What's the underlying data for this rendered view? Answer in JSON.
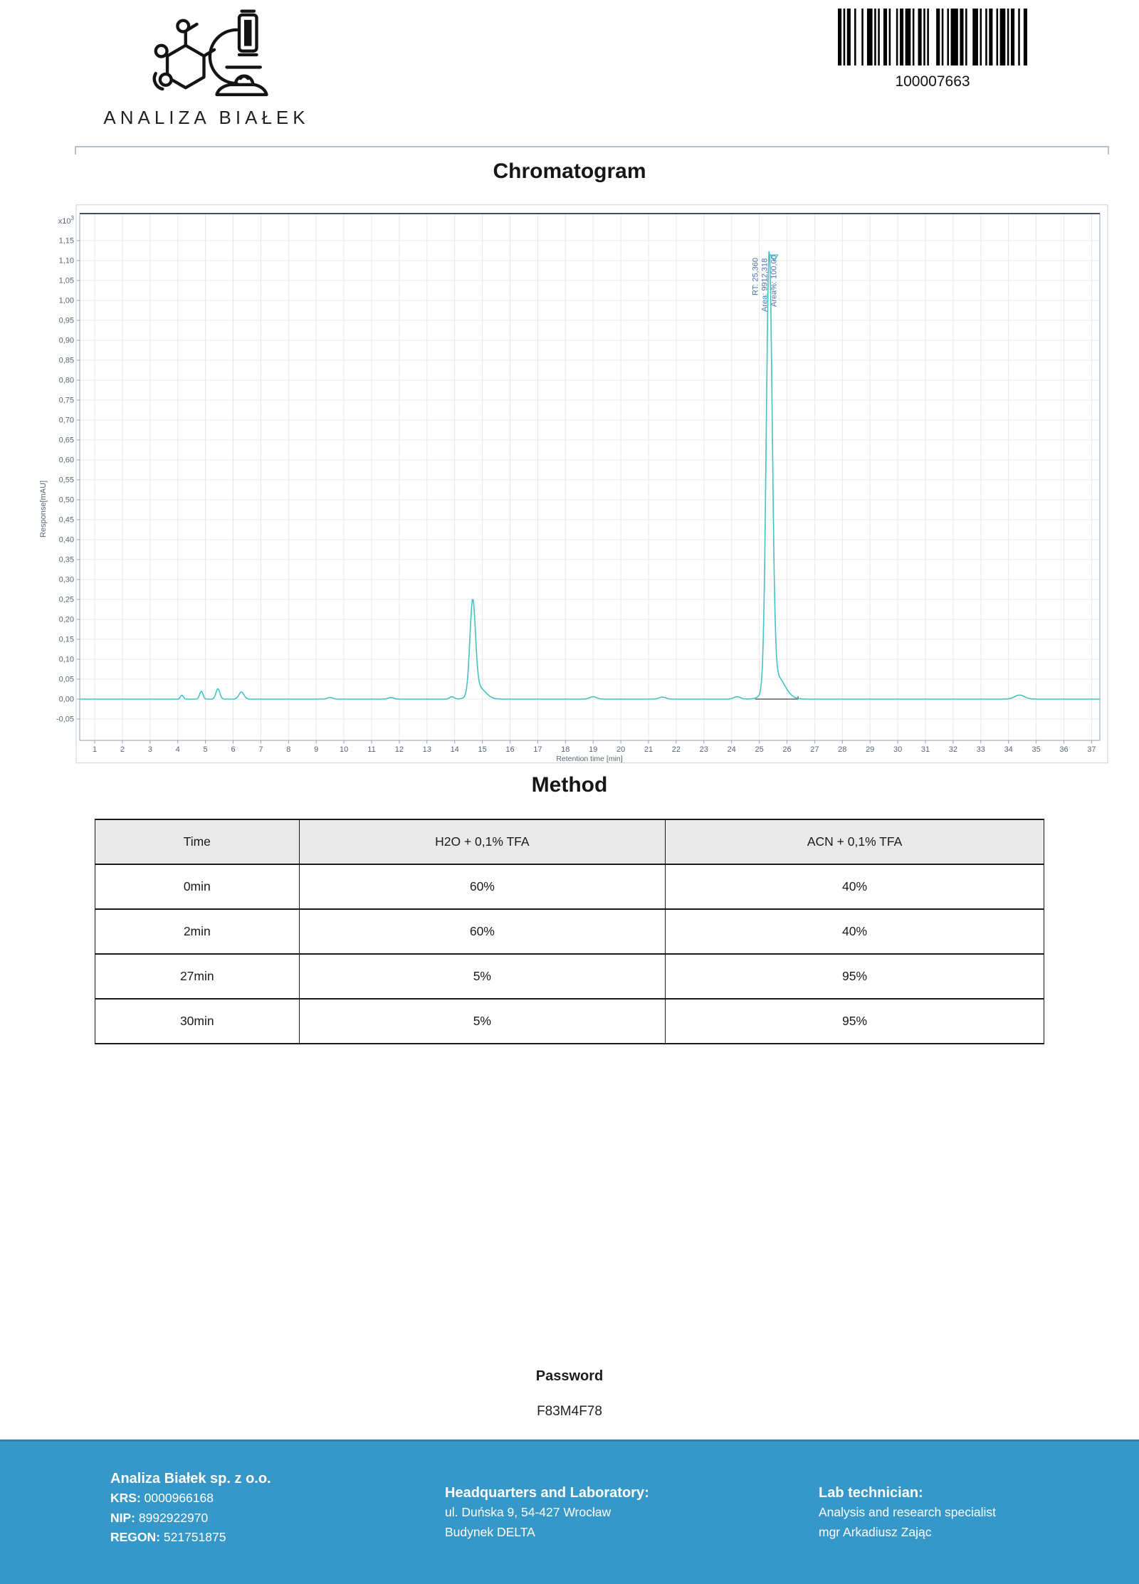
{
  "logo": {
    "name": "ANALIZA BIAŁEK"
  },
  "barcode": {
    "number": "100007663"
  },
  "chromatogram_title": "Chromatogram",
  "chart_data": {
    "type": "line",
    "title": "Chromatogram",
    "xlabel": "Retention time [min]",
    "ylabel": "Response[mAU]",
    "y_scale_label": {
      "base": "x10",
      "exp": "3"
    },
    "x_range": [
      0.45,
      37.3
    ],
    "y_range": [
      -0.05,
      1.15
    ],
    "grid": true,
    "line_color": "#46c1c5",
    "x_ticks": [
      "1",
      "2",
      "3",
      "4",
      "5",
      "6",
      "7",
      "8",
      "9",
      "10",
      "11",
      "12",
      "13",
      "14",
      "15",
      "16",
      "17",
      "18",
      "19",
      "20",
      "21",
      "22",
      "23",
      "24",
      "25",
      "26",
      "27",
      "28",
      "29",
      "30",
      "31",
      "32",
      "33",
      "34",
      "35",
      "36",
      "37"
    ],
    "y_ticks": [
      "1,15",
      "1,10",
      "1,05",
      "1,00",
      "0,95",
      "0,90",
      "0,85",
      "0,80",
      "0,75",
      "0,70",
      "0,65",
      "0,60",
      "0,55",
      "0,50",
      "0,45",
      "0,40",
      "0,35",
      "0,30",
      "0,25",
      "0,20",
      "0,15",
      "0,10",
      "0,05",
      "0,00",
      "-0,05"
    ],
    "peaks": [
      {
        "rt": 4.15,
        "height": 0.01,
        "width": 0.05
      },
      {
        "rt": 4.85,
        "height": 0.02,
        "width": 0.06
      },
      {
        "rt": 5.45,
        "height": 0.026,
        "width": 0.07
      },
      {
        "rt": 6.3,
        "height": 0.018,
        "width": 0.09
      },
      {
        "rt": 9.5,
        "height": 0.004,
        "width": 0.1
      },
      {
        "rt": 11.7,
        "height": 0.004,
        "width": 0.1
      },
      {
        "rt": 13.9,
        "height": 0.006,
        "width": 0.08
      },
      {
        "rt": 14.65,
        "height": 0.23,
        "width": 0.1
      },
      {
        "rt": 14.85,
        "height": 0.03,
        "width": 0.25
      },
      {
        "rt": 19.0,
        "height": 0.006,
        "width": 0.12
      },
      {
        "rt": 21.5,
        "height": 0.005,
        "width": 0.12
      },
      {
        "rt": 24.2,
        "height": 0.006,
        "width": 0.12
      },
      {
        "rt": 25.36,
        "height": 1.085,
        "width": 0.105
      },
      {
        "rt": 25.6,
        "height": 0.06,
        "width": 0.3
      },
      {
        "rt": 34.4,
        "height": 0.01,
        "width": 0.18
      }
    ],
    "main_peak": {
      "rt_min": 25.36,
      "area": 9912.318,
      "area_percent": 100.0,
      "label_lines": [
        "RT: 25,360",
        "Area: 9912,318",
        "Area%: 100,00"
      ]
    }
  },
  "method": {
    "title": "Method",
    "table": {
      "headers": [
        "Time",
        "H2O + 0,1% TFA",
        "ACN + 0,1% TFA"
      ],
      "rows": [
        [
          "0min",
          "60%",
          "40%"
        ],
        [
          "2min",
          "60%",
          "40%"
        ],
        [
          "27min",
          "5%",
          "95%"
        ],
        [
          "30min",
          "5%",
          "95%"
        ]
      ]
    }
  },
  "password": {
    "label": "Password",
    "value": "F83M4F78"
  },
  "footer": {
    "company": {
      "title": "Analiza Białek sp. z o.o.",
      "lines": [
        {
          "label": "KRS:",
          "value": "0000966168"
        },
        {
          "label": "NIP:",
          "value": "8992922970"
        },
        {
          "label": "REGON:",
          "value": "521751875"
        }
      ]
    },
    "hq": {
      "title": "Headquarters and Laboratory:",
      "lines": [
        "ul. Duńska 9, 54-427 Wrocław",
        "Budynek DELTA"
      ]
    },
    "tech": {
      "title": "Lab technician:",
      "lines": [
        "Analysis and research specialist",
        "mgr Arkadiusz Zając"
      ]
    }
  },
  "colors": {
    "footer_bg": "#3697c9",
    "footer_strip": "#55aad6",
    "accent_teal": "#46c1c5",
    "annotation_blue": "#4a74b0",
    "table_header_bg": "#e9e9e9",
    "grid": "#e8e8e8"
  }
}
